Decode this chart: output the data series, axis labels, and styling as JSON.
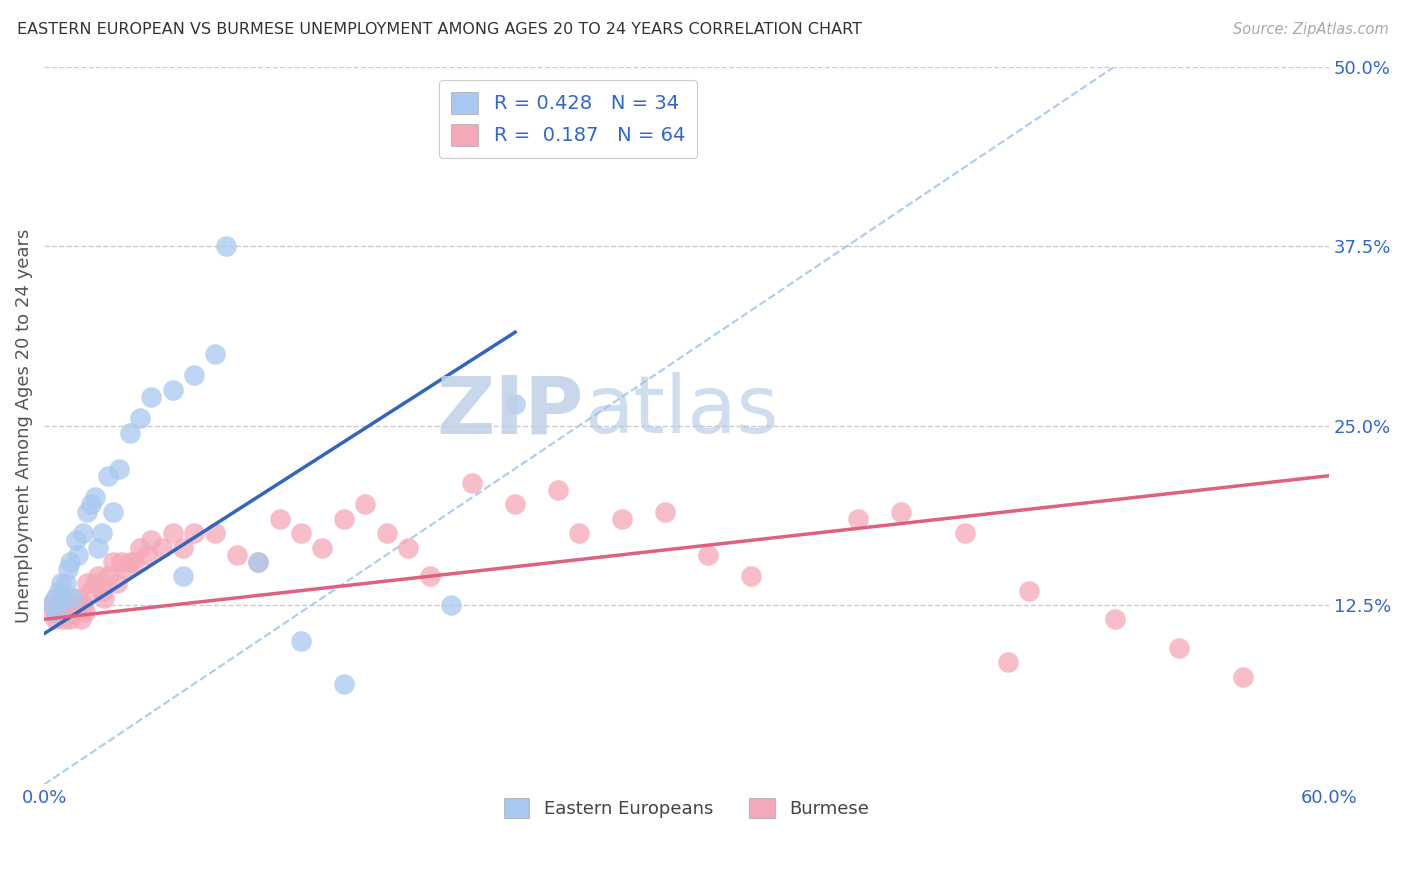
{
  "title": "EASTERN EUROPEAN VS BURMESE UNEMPLOYMENT AMONG AGES 20 TO 24 YEARS CORRELATION CHART",
  "source": "Source: ZipAtlas.com",
  "ylabel": "Unemployment Among Ages 20 to 24 years",
  "xlim": [
    0.0,
    0.6
  ],
  "ylim": [
    0.0,
    0.5
  ],
  "yticks_right": [
    0.125,
    0.25,
    0.375,
    0.5
  ],
  "yticklabels_right": [
    "12.5%",
    "25.0%",
    "37.5%",
    "50.0%"
  ],
  "R_blue": 0.428,
  "N_blue": 34,
  "R_pink": 0.187,
  "N_pink": 64,
  "blue_color": "#A8C8F0",
  "pink_color": "#F5A8B8",
  "blue_line_color": "#3366BB",
  "pink_line_color": "#E06080",
  "diag_color": "#AACCEE",
  "legend_text_color": "#3366CC",
  "watermark_zip": "ZIP",
  "watermark_atlas": "atlas",
  "blue_x": [
    0.003,
    0.005,
    0.006,
    0.007,
    0.008,
    0.009,
    0.01,
    0.011,
    0.012,
    0.013,
    0.015,
    0.016,
    0.018,
    0.02,
    0.022,
    0.024,
    0.025,
    0.027,
    0.03,
    0.032,
    0.035,
    0.04,
    0.045,
    0.05,
    0.06,
    0.065,
    0.07,
    0.08,
    0.085,
    0.1,
    0.12,
    0.14,
    0.19,
    0.22
  ],
  "blue_y": [
    0.125,
    0.13,
    0.12,
    0.135,
    0.14,
    0.13,
    0.14,
    0.15,
    0.155,
    0.13,
    0.17,
    0.16,
    0.175,
    0.19,
    0.195,
    0.2,
    0.165,
    0.175,
    0.215,
    0.19,
    0.22,
    0.245,
    0.255,
    0.27,
    0.275,
    0.145,
    0.285,
    0.3,
    0.375,
    0.155,
    0.1,
    0.07,
    0.125,
    0.265
  ],
  "pink_x": [
    0.003,
    0.004,
    0.005,
    0.006,
    0.007,
    0.008,
    0.009,
    0.01,
    0.011,
    0.012,
    0.013,
    0.014,
    0.015,
    0.016,
    0.017,
    0.018,
    0.019,
    0.02,
    0.022,
    0.024,
    0.025,
    0.027,
    0.028,
    0.03,
    0.032,
    0.034,
    0.036,
    0.038,
    0.04,
    0.042,
    0.045,
    0.048,
    0.05,
    0.055,
    0.06,
    0.065,
    0.07,
    0.08,
    0.09,
    0.1,
    0.11,
    0.12,
    0.13,
    0.14,
    0.15,
    0.16,
    0.17,
    0.18,
    0.2,
    0.22,
    0.24,
    0.25,
    0.27,
    0.29,
    0.31,
    0.33,
    0.38,
    0.4,
    0.43,
    0.45,
    0.46,
    0.5,
    0.53,
    0.56
  ],
  "pink_y": [
    0.125,
    0.12,
    0.115,
    0.13,
    0.12,
    0.125,
    0.115,
    0.12,
    0.125,
    0.115,
    0.125,
    0.12,
    0.125,
    0.13,
    0.115,
    0.125,
    0.12,
    0.14,
    0.135,
    0.14,
    0.145,
    0.135,
    0.13,
    0.145,
    0.155,
    0.14,
    0.155,
    0.15,
    0.155,
    0.155,
    0.165,
    0.16,
    0.17,
    0.165,
    0.175,
    0.165,
    0.175,
    0.175,
    0.16,
    0.155,
    0.185,
    0.175,
    0.165,
    0.185,
    0.195,
    0.175,
    0.165,
    0.145,
    0.21,
    0.195,
    0.205,
    0.175,
    0.185,
    0.19,
    0.16,
    0.145,
    0.185,
    0.19,
    0.175,
    0.085,
    0.135,
    0.115,
    0.095,
    0.075
  ],
  "blue_trend_x": [
    0.0,
    0.22
  ],
  "blue_trend_y": [
    0.105,
    0.315
  ],
  "pink_trend_x": [
    0.0,
    0.6
  ],
  "pink_trend_y": [
    0.115,
    0.215
  ]
}
